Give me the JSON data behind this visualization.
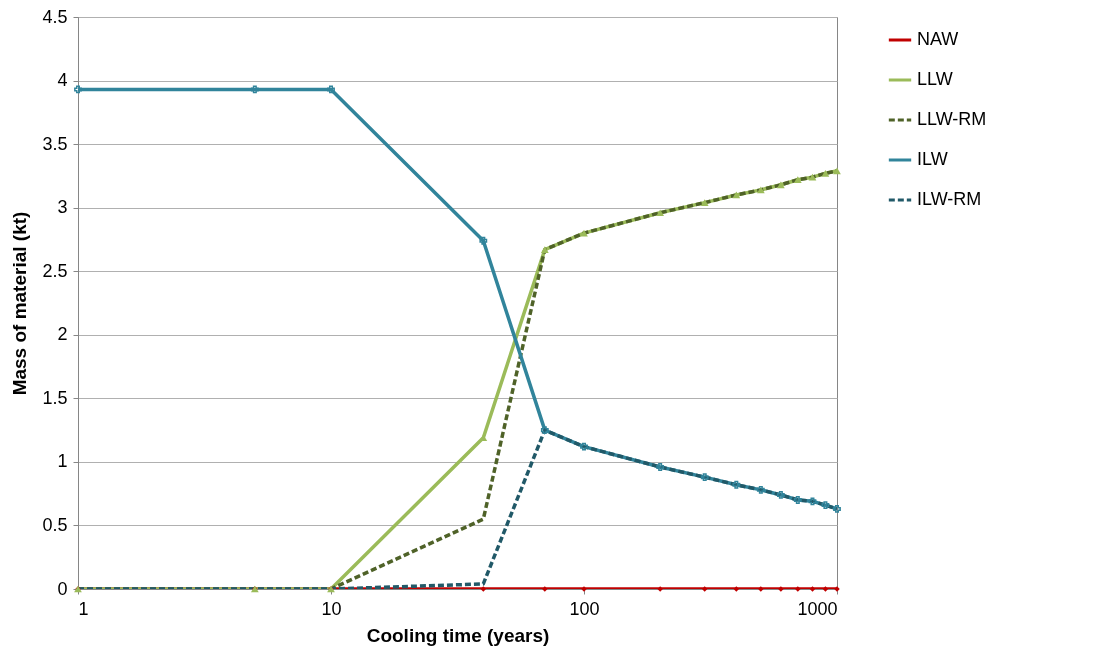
{
  "chart_data": {
    "type": "line",
    "xlabel": "Cooling time (years)",
    "ylabel": "Mass of material (kt)",
    "x": [
      1,
      5,
      10,
      40,
      70,
      100,
      200,
      300,
      400,
      500,
      600,
      700,
      800,
      900,
      1000
    ],
    "series": [
      {
        "name": "NAW",
        "color": "#c00000",
        "marker": "diamond",
        "line_style": "solid",
        "values": [
          0,
          0,
          0,
          0,
          0,
          0,
          0,
          0,
          0,
          0,
          0,
          0,
          0,
          0,
          0
        ]
      },
      {
        "name": "LLW",
        "color": "#9bbb59",
        "marker": "triangle",
        "line_style": "solid",
        "values": [
          0,
          0,
          0,
          1.19,
          2.67,
          2.8,
          2.96,
          3.04,
          3.1,
          3.14,
          3.18,
          3.22,
          3.24,
          3.27,
          3.29
        ]
      },
      {
        "name": "LLW-RM",
        "color": "#4f6228",
        "marker": "none",
        "line_style": "dashed",
        "values": [
          0,
          0,
          0,
          0.55,
          2.67,
          2.8,
          2.96,
          3.04,
          3.1,
          3.14,
          3.18,
          3.22,
          3.24,
          3.27,
          3.29
        ]
      },
      {
        "name": "ILW",
        "color": "#31849b",
        "marker": "cross",
        "line_style": "solid",
        "values": [
          3.93,
          3.93,
          3.93,
          2.74,
          1.25,
          1.12,
          0.96,
          0.88,
          0.82,
          0.78,
          0.74,
          0.7,
          0.69,
          0.66,
          0.63
        ]
      },
      {
        "name": "ILW-RM",
        "color": "#215968",
        "marker": "none",
        "line_style": "dashed",
        "values": [
          0,
          0,
          0,
          0.04,
          1.25,
          1.12,
          0.96,
          0.88,
          0.82,
          0.78,
          0.74,
          0.7,
          0.69,
          0.66,
          0.63
        ]
      }
    ],
    "log": "x",
    "xlim": [
      1,
      1000
    ],
    "xticks": [
      1,
      10,
      100,
      1000
    ],
    "ylim": [
      0,
      4.5
    ],
    "yticks": [
      0,
      0.5,
      1,
      1.5,
      2,
      2.5,
      3,
      3.5,
      4,
      4.5
    ],
    "grid": "y",
    "legend": "right"
  }
}
